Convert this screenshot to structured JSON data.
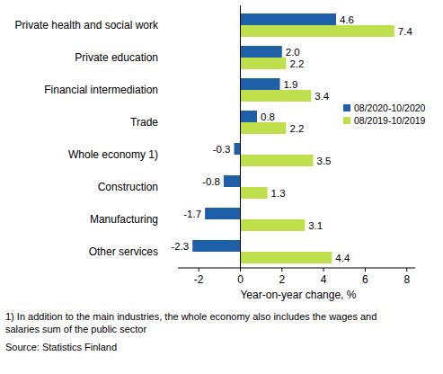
{
  "chart_data": {
    "type": "bar",
    "orientation": "horizontal",
    "categories": [
      "Private health and social work",
      "Private education",
      "Financial intermediation",
      "Trade",
      "Whole economy 1)",
      "Construction",
      "Manufacturing",
      "Other services"
    ],
    "series": [
      {
        "name": "08/2020-10/2020",
        "color": "#1f5fa8",
        "values": [
          4.6,
          2.0,
          1.9,
          0.8,
          -0.3,
          -0.8,
          -1.7,
          -2.3
        ],
        "value_labels": [
          "4.6",
          "2.0",
          "1.9",
          "0.8",
          "-0.3",
          "-0.8",
          "-1.7",
          "-2.3"
        ]
      },
      {
        "name": "08/2019-10/2019",
        "color": "#bfe04c",
        "values": [
          7.4,
          2.2,
          3.4,
          2.2,
          3.5,
          1.3,
          3.1,
          4.4
        ],
        "value_labels": [
          "7.4",
          "2.2",
          "3.4",
          "2.2",
          "3.5",
          "1.3",
          "3.1",
          "4.4"
        ]
      }
    ],
    "xlabel": "Year-on-year change, %",
    "xlim": [
      -3,
      8.4
    ],
    "xticks": [
      -2,
      0,
      2,
      4,
      6,
      8
    ],
    "grid": false,
    "legend": "right",
    "data_labels": true,
    "notes": [
      "1) In addition to the main industries, the whole economy also includes the wages and",
      "salaries sum of the public sector"
    ],
    "source": "Source: Statistics Finland"
  }
}
